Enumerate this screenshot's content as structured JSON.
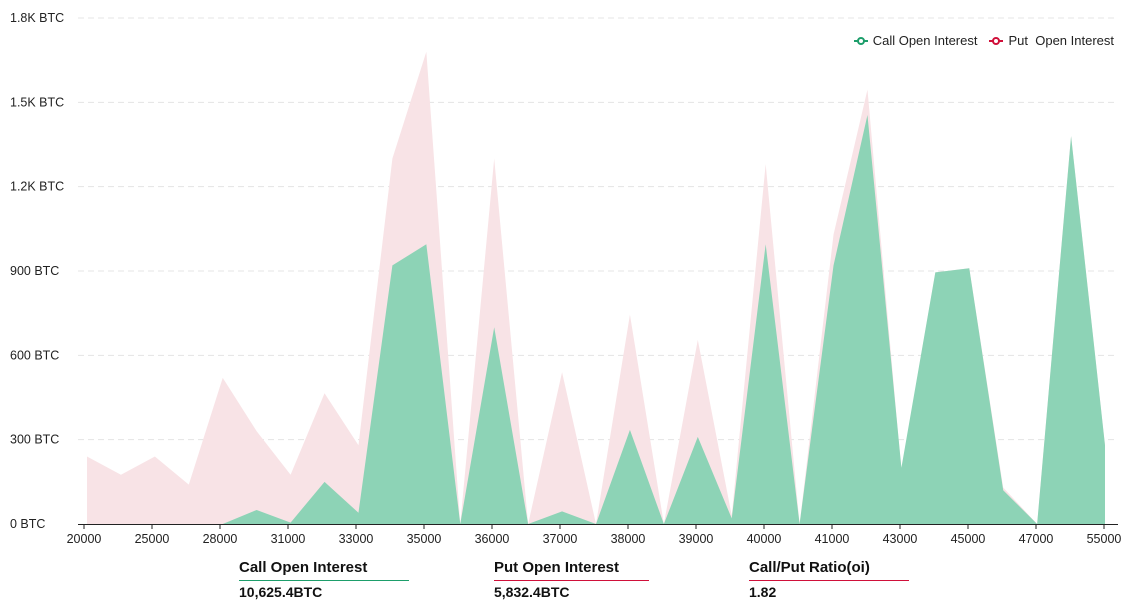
{
  "colors": {
    "call": "#8dd3b6",
    "call_line": "#1d9e6b",
    "put": "#f8e3e6",
    "put_line": "#d0103a",
    "grid": "#e4e4e4",
    "axis": "#222222"
  },
  "chart_data": {
    "type": "area",
    "title": "",
    "xlabel": "",
    "ylabel": "",
    "y_unit": "BTC",
    "ylim": [
      0,
      1800
    ],
    "yticks": [
      0,
      300,
      600,
      900,
      1200,
      1500,
      1800
    ],
    "ytick_labels": [
      "0 BTC",
      "300 BTC",
      "600 BTC",
      "900 BTC",
      "1.2K BTC",
      "1.5K BTC",
      "1.8K BTC"
    ],
    "grid": "horizontal",
    "legend_position": "top-right",
    "x": [
      20000,
      24000,
      25000,
      26000,
      28000,
      30000,
      31000,
      32000,
      33000,
      34000,
      35000,
      35500,
      36000,
      36500,
      37000,
      37500,
      38000,
      38500,
      39000,
      39500,
      40000,
      40500,
      41000,
      42000,
      43000,
      44000,
      45000,
      46000,
      47000,
      48000,
      55000
    ],
    "x_tick_labels": [
      "20000",
      "25000",
      "28000",
      "31000",
      "33000",
      "35000",
      "36000",
      "37000",
      "38000",
      "39000",
      "40000",
      "41000",
      "43000",
      "45000",
      "47000",
      "55000"
    ],
    "series": [
      {
        "name": "Call Open Interest",
        "values": [
          0,
          0,
          0,
          0,
          0,
          50,
          5,
          150,
          40,
          920,
          995,
          0,
          700,
          0,
          45,
          0,
          335,
          0,
          310,
          20,
          995,
          0,
          920,
          1455,
          200,
          895,
          910,
          120,
          0,
          1380,
          280
        ]
      },
      {
        "name": "Put  Open Interest",
        "values": [
          240,
          175,
          240,
          140,
          520,
          330,
          175,
          465,
          280,
          1300,
          1680,
          0,
          1300,
          0,
          540,
          0,
          745,
          0,
          655,
          30,
          1280,
          0,
          1030,
          1545,
          190,
          895,
          910,
          130,
          0,
          1380,
          280
        ]
      }
    ]
  },
  "stats": [
    {
      "label": "Call Open Interest",
      "value": "10,625.4BTC",
      "line_color": "#1d9e6b"
    },
    {
      "label": "Put Open Interest",
      "value": "5,832.4BTC",
      "line_color": "#d0103a"
    },
    {
      "label": "Call/Put Ratio(oi)",
      "value": "1.82",
      "line_color": "#d0103a"
    }
  ]
}
